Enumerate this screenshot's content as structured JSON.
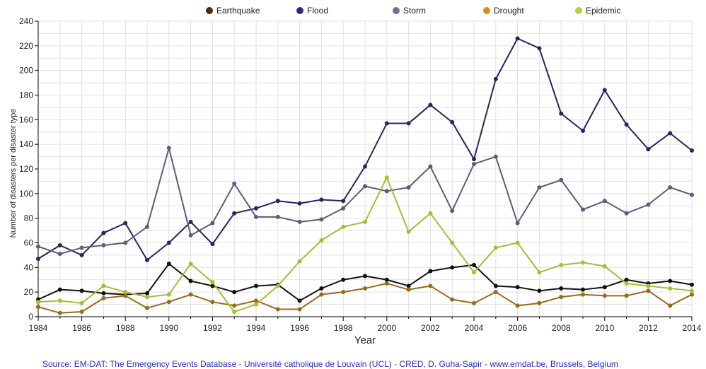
{
  "chart_data": {
    "type": "line",
    "title": "",
    "xlabel": "Year",
    "ylabel": "Number of disasters per  disaster type",
    "xlim": [
      1984,
      2014
    ],
    "ylim": [
      0,
      240
    ],
    "x_ticks": [
      1984,
      1986,
      1988,
      1990,
      1992,
      1994,
      1996,
      1998,
      2000,
      2002,
      2004,
      2006,
      2008,
      2010,
      2012,
      2014
    ],
    "y_ticks": [
      0,
      20,
      40,
      60,
      80,
      100,
      120,
      140,
      160,
      180,
      200,
      220,
      240
    ],
    "grid": true,
    "legend_position": "top",
    "x": [
      1984,
      1985,
      1986,
      1987,
      1988,
      1989,
      1990,
      1991,
      1992,
      1993,
      1994,
      1995,
      1996,
      1997,
      1998,
      1999,
      2000,
      2001,
      2002,
      2003,
      2004,
      2005,
      2006,
      2007,
      2008,
      2009,
      2010,
      2011,
      2012,
      2013,
      2014
    ],
    "series": [
      {
        "name": "Earthquake",
        "legend_color": "#5a2410",
        "line_color": "#111111",
        "values": [
          14,
          22,
          21,
          19,
          18,
          19,
          43,
          29,
          25,
          20,
          25,
          26,
          13,
          23,
          30,
          33,
          30,
          25,
          37,
          40,
          42,
          25,
          24,
          21,
          23,
          22,
          24,
          30,
          27,
          29,
          26
        ]
      },
      {
        "name": "Flood",
        "legend_color": "#2a2a7a",
        "line_color": "#26265e",
        "values": [
          47,
          58,
          50,
          68,
          76,
          46,
          60,
          77,
          59,
          84,
          88,
          94,
          92,
          95,
          94,
          122,
          157,
          157,
          172,
          158,
          128,
          193,
          226,
          218,
          165,
          151,
          184,
          156,
          136,
          149,
          135
        ]
      },
      {
        "name": "Storm",
        "legend_color": "#70708a",
        "line_color": "#5a5e78",
        "values": [
          57,
          51,
          56,
          58,
          60,
          73,
          137,
          66,
          76,
          108,
          81,
          81,
          77,
          79,
          88,
          106,
          102,
          105,
          122,
          86,
          124,
          130,
          76,
          105,
          111,
          87,
          94,
          84,
          91,
          105,
          99
        ]
      },
      {
        "name": "Drought",
        "legend_color": "#d4901a",
        "line_color": "#9a6a1a",
        "values": [
          8,
          3,
          4,
          15,
          17,
          7,
          12,
          18,
          12,
          9,
          13,
          6,
          6,
          18,
          20,
          23,
          27,
          22,
          25,
          14,
          11,
          20,
          9,
          11,
          16,
          18,
          17,
          17,
          21,
          9,
          18
        ]
      },
      {
        "name": "Epidemic",
        "legend_color": "#b4d040",
        "line_color": "#a8bc38",
        "values": [
          12,
          13,
          11,
          25,
          20,
          16,
          18,
          43,
          28,
          4,
          10,
          25,
          45,
          62,
          73,
          77,
          113,
          69,
          84,
          60,
          36,
          56,
          60,
          36,
          42,
          44,
          41,
          27,
          25,
          23,
          21
        ]
      }
    ]
  },
  "source_text": "Source: EM-DAT: The Emergency Events Database - Université catholique de Louvain (UCL) - CRED, D. Guha-Sapir - www.emdat.be, Brussels, Belgium"
}
